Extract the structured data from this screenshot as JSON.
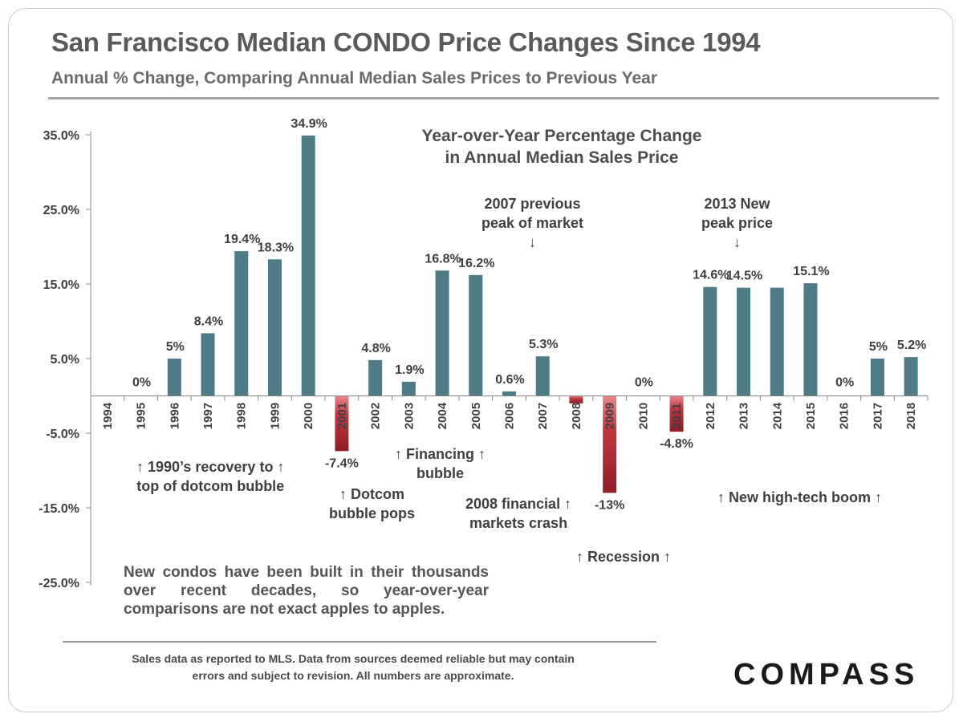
{
  "header": {
    "title": "San Francisco Median CONDO Price Changes Since 1994",
    "subtitle": "Annual % Change, Comparing Annual Median Sales Prices to Previous Year"
  },
  "chart_data": {
    "type": "bar",
    "title": "Year-over-Year Percentage Change\nin Annual Median Sales Price",
    "categories": [
      "1994",
      "1995",
      "1996",
      "1997",
      "1998",
      "1999",
      "2000",
      "2001",
      "2002",
      "2003",
      "2004",
      "2005",
      "2006",
      "2007",
      "2008",
      "2009",
      "2010",
      "2011",
      "2012",
      "2013",
      "2014",
      "2015",
      "2016",
      "2017",
      "2018"
    ],
    "values": [
      null,
      0,
      5,
      8.4,
      19.4,
      18.3,
      34.9,
      -7.4,
      4.8,
      1.9,
      16.8,
      16.2,
      0.6,
      5.3,
      -1.0,
      -13,
      0,
      -4.8,
      14.6,
      14.5,
      14.5,
      15.1,
      0,
      5,
      5.2
    ],
    "data_labels": [
      "",
      "0%",
      "5%",
      "8.4%",
      "19.4%",
      "18.3%",
      "34.9%",
      "-7.4%",
      "4.8%",
      "1.9%",
      "16.8%",
      "16.2%",
      "0.6%",
      "5.3%",
      "",
      "-13%",
      "0%",
      "-4.8%",
      "14.6%",
      "14.5%",
      "",
      "15.1%",
      "0%",
      "5%",
      "5.2%"
    ],
    "y_ticks": [
      35,
      25,
      15,
      5,
      -5,
      -15,
      -25
    ],
    "y_tick_labels": [
      "35.0%",
      "25.0%",
      "15.0%",
      "5.0%",
      "-5.0%",
      "-15.0%",
      "-25.0%"
    ],
    "ylim": [
      -25,
      35
    ],
    "xlabel": "",
    "ylabel": "",
    "grid": false,
    "colors": {
      "positive": "#4f7b86",
      "negative": "#c0383f"
    }
  },
  "annotations": {
    "recovery": "↑ 1990’s recovery to ↑\ntop of dotcom bubble",
    "dotcom": "↑ Dotcom\nbubble pops",
    "financing": "↑ Financing ↑\nbubble",
    "peak2007": "2007 previous\npeak of market\n↓",
    "crash2008": "2008 financial ↑\nmarkets crash",
    "recession": "↑ Recession ↑",
    "peak2013": "2013 New\npeak price\n↓",
    "hightech": "↑ New high-tech boom ↑"
  },
  "note": {
    "line1": "New condos have been built in their thousands",
    "line2": "over recent decades, so year-over-year",
    "line3": "comparisons are not exact apples to apples."
  },
  "footnote": "Sales data as reported to MLS. Data from sources deemed reliable but may contain\nerrors and subject to revision. All numbers are approximate.",
  "logo": "COMPASS"
}
